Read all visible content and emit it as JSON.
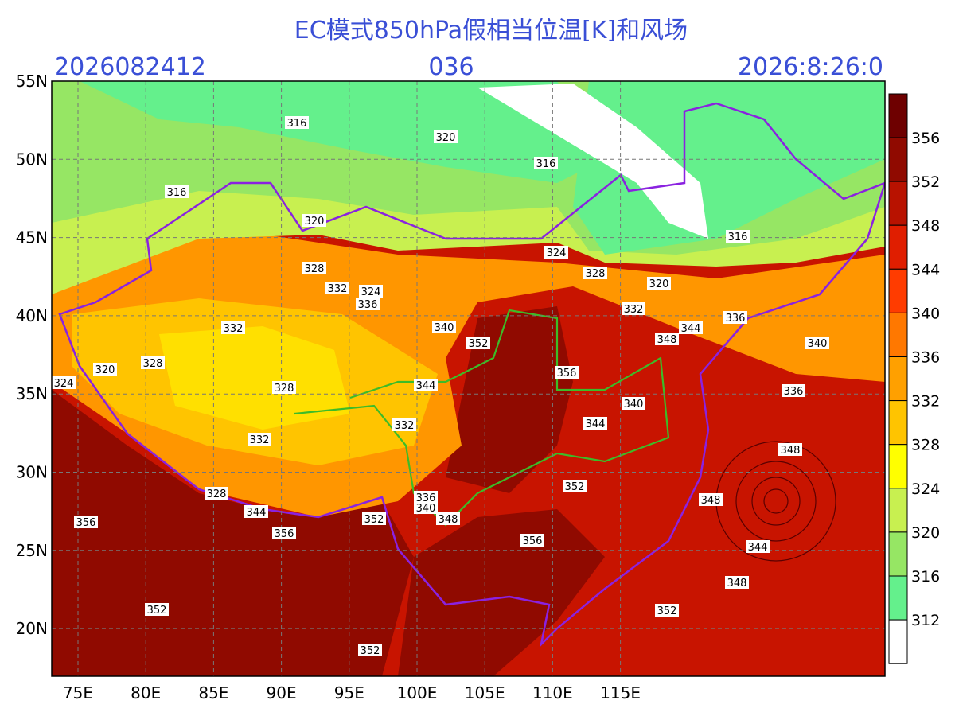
{
  "header": {
    "title": "EC模式850hPa假相当位温[K]和风场",
    "init_time": "2026082412",
    "lead": "036",
    "valid_time": "2026:8:26:0"
  },
  "map": {
    "lat_labels": [
      "55N",
      "50N",
      "45N",
      "40N",
      "35N",
      "30N",
      "25N",
      "20N"
    ],
    "lon_labels": [
      "75E",
      "80E",
      "85E",
      "90E",
      "95E",
      "100E",
      "105E",
      "110E",
      "115E"
    ]
  },
  "colorbar": {
    "labels": [
      "356",
      "352",
      "348",
      "344",
      "340",
      "336",
      "332",
      "328",
      "324",
      "320",
      "316",
      "312"
    ]
  },
  "contours": {
    "labels": [
      "316",
      "320",
      "316",
      "316",
      "320",
      "316",
      "324",
      "328",
      "328",
      "320",
      "332",
      "324",
      "336",
      "332",
      "332",
      "340",
      "344",
      "336",
      "348",
      "340",
      "352",
      "328",
      "320",
      "356",
      "324",
      "344",
      "328",
      "336",
      "340",
      "332",
      "344",
      "332",
      "348",
      "352",
      "328",
      "348",
      "336",
      "340",
      "344",
      "352",
      "348",
      "356",
      "356",
      "356",
      "344",
      "348",
      "352",
      "352",
      "352"
    ]
  }
}
